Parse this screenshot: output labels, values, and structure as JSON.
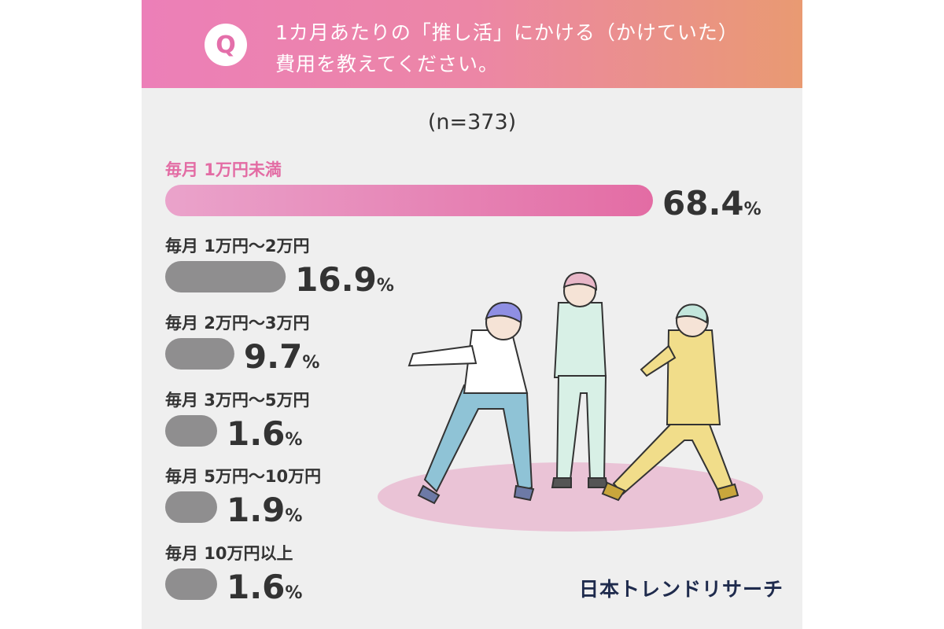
{
  "header": {
    "badge": "Q",
    "question_line1": "1カ月あたりの「推し活」にかける（かけていた）",
    "question_line2": "費用を教えてください。"
  },
  "sample_size": "(n=373)",
  "brand": "日本トレンドリサーチ",
  "colors": {
    "highlight": "#e36ca4",
    "highlight_light": "#eaa3cb",
    "bar_gray": "#8f8e8f",
    "label_dark": "#333333",
    "header_pink": "#ec7fb8",
    "header_orange": "#e99a72",
    "background": "#efefef"
  },
  "chart_data": {
    "type": "bar",
    "orientation": "horizontal",
    "unit": "%",
    "categories": [
      "毎月 1万円未満",
      "毎月 1万円〜2万円",
      "毎月 2万円〜3万円",
      "毎月 3万円〜5万円",
      "毎月 5万円〜10万円",
      "毎月 10万円以上"
    ],
    "values": [
      68.4,
      16.9,
      9.7,
      1.6,
      1.9,
      1.6
    ],
    "value_labels": [
      "68.4",
      "16.9",
      "9.7",
      "1.6",
      "1.9",
      "1.6"
    ],
    "highlight_index": 0
  }
}
